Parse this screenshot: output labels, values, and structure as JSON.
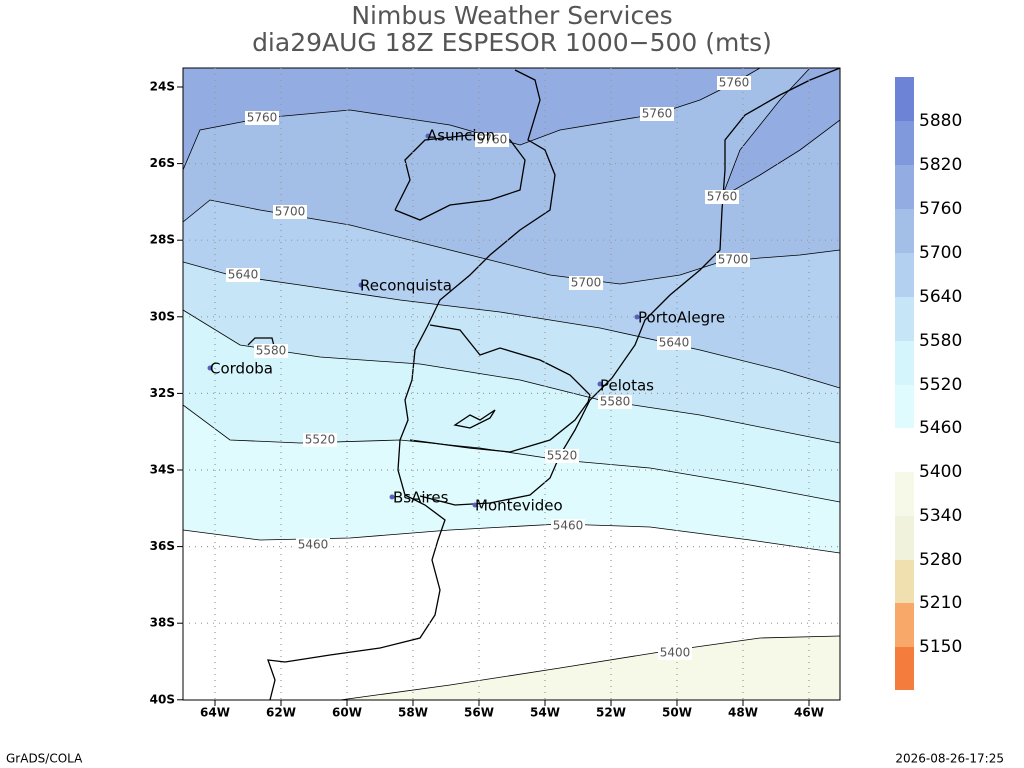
{
  "title": [
    "Nimbus Weather Services",
    "dia29AUG 18Z ESPESOR 1000−500 (mts)"
  ],
  "lat_ticks": [
    "24S",
    "26S",
    "28S",
    "30S",
    "32S",
    "34S",
    "36S",
    "38S",
    "40S"
  ],
  "lon_ticks": [
    "64W",
    "62W",
    "60W",
    "58W",
    "56W",
    "54W",
    "52W",
    "50W",
    "48W",
    "46W"
  ],
  "cities": [
    "Asuncion",
    "Reconquista",
    "Cordoba",
    "PortoAlegre",
    "Pelotas",
    "BsAires",
    "Montevideo"
  ],
  "contour_labels": [
    "5760",
    "5760",
    "5760",
    "5760",
    "5760",
    "5700",
    "5700",
    "5700",
    "5640",
    "5640",
    "5580",
    "5580",
    "5520",
    "5520",
    "5460",
    "5460",
    "5400"
  ],
  "colorbar_labels": [
    "5880",
    "5820",
    "5760",
    "5700",
    "5640",
    "5580",
    "5520",
    "5460",
    "5400",
    "5340",
    "5280",
    "5210",
    "5150"
  ],
  "footer": {
    "left": "GrADS/COLA",
    "right": "2026-08-26-17:25"
  }
}
